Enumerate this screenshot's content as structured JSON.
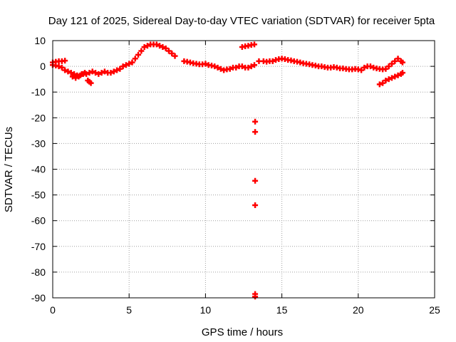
{
  "chart_data": {
    "type": "scatter",
    "title": "Day 121 of 2025, Sidereal Day-to-day VTEC variation (SDTVAR) for receiver 5pta",
    "xlabel": "GPS time / hours",
    "ylabel": "SDTVAR / TECUs",
    "xlim": [
      0,
      25
    ],
    "ylim": [
      -90,
      10
    ],
    "xticks": [
      0,
      5,
      10,
      15,
      20,
      25
    ],
    "yticks": [
      10,
      0,
      -10,
      -20,
      -30,
      -40,
      -50,
      -60,
      -70,
      -80,
      -90
    ],
    "grid": true,
    "marker": "+",
    "series_color": "#ff0000",
    "series": [
      {
        "name": "SDTVAR",
        "points": [
          [
            0.0,
            0.5
          ],
          [
            0.2,
            0.3
          ],
          [
            0.4,
            0.0
          ],
          [
            0.6,
            -0.5
          ],
          [
            0.8,
            -1.5
          ],
          [
            1.0,
            -2.0
          ],
          [
            1.2,
            -2.5
          ],
          [
            1.4,
            -3.0
          ],
          [
            1.6,
            -3.5
          ],
          [
            1.8,
            -3.5
          ],
          [
            2.0,
            -3.0
          ],
          [
            2.2,
            -3.0
          ],
          [
            2.4,
            -2.5
          ],
          [
            2.6,
            -2.0
          ],
          [
            2.8,
            -2.5
          ],
          [
            3.0,
            -3.0
          ],
          [
            3.2,
            -2.5
          ],
          [
            3.4,
            -2.0
          ],
          [
            3.6,
            -2.5
          ],
          [
            3.8,
            -2.5
          ],
          [
            4.0,
            -2.0
          ],
          [
            4.2,
            -1.5
          ],
          [
            4.4,
            -1.0
          ],
          [
            4.6,
            0.0
          ],
          [
            4.8,
            0.5
          ],
          [
            5.0,
            1.0
          ],
          [
            5.2,
            1.5
          ],
          [
            5.4,
            3.0
          ],
          [
            5.6,
            4.5
          ],
          [
            5.8,
            6.0
          ],
          [
            6.0,
            7.5
          ],
          [
            6.2,
            8.0
          ],
          [
            6.4,
            8.5
          ],
          [
            6.6,
            8.5
          ],
          [
            6.8,
            8.5
          ],
          [
            7.0,
            8.0
          ],
          [
            7.2,
            7.5
          ],
          [
            7.4,
            7.0
          ],
          [
            7.6,
            6.0
          ],
          [
            7.8,
            5.0
          ],
          [
            8.0,
            4.0
          ],
          [
            8.6,
            2.0
          ],
          [
            8.8,
            1.8
          ],
          [
            9.0,
            1.5
          ],
          [
            9.2,
            1.2
          ],
          [
            9.4,
            1.0
          ],
          [
            9.6,
            0.8
          ],
          [
            9.8,
            0.8
          ],
          [
            10.0,
            1.0
          ],
          [
            10.2,
            0.5
          ],
          [
            10.4,
            0.3
          ],
          [
            10.6,
            0.0
          ],
          [
            10.8,
            -0.5
          ],
          [
            11.0,
            -1.0
          ],
          [
            11.2,
            -1.5
          ],
          [
            11.4,
            -1.2
          ],
          [
            11.6,
            -1.0
          ],
          [
            11.8,
            -0.5
          ],
          [
            12.0,
            -0.5
          ],
          [
            12.2,
            0.0
          ],
          [
            12.4,
            0.0
          ],
          [
            12.6,
            -0.5
          ],
          [
            12.8,
            -0.5
          ],
          [
            13.0,
            0.0
          ],
          [
            13.2,
            0.5
          ],
          [
            12.4,
            7.5
          ],
          [
            12.6,
            7.8
          ],
          [
            12.8,
            8.0
          ],
          [
            13.0,
            8.3
          ],
          [
            13.2,
            8.5
          ],
          [
            13.25,
            -21.5
          ],
          [
            13.25,
            -25.5
          ],
          [
            13.25,
            -44.5
          ],
          [
            13.25,
            -54.0
          ],
          [
            13.25,
            -88.5
          ],
          [
            13.25,
            -89.5
          ],
          [
            0.0,
            1.5
          ],
          [
            0.2,
            1.8
          ],
          [
            0.4,
            2.0
          ],
          [
            0.6,
            2.0
          ],
          [
            0.8,
            2.2
          ],
          [
            1.3,
            -4.0
          ],
          [
            1.5,
            -4.5
          ],
          [
            1.7,
            -4.0
          ],
          [
            1.9,
            -3.0
          ],
          [
            2.1,
            -2.5
          ],
          [
            2.3,
            -5.5
          ],
          [
            2.4,
            -6.0
          ],
          [
            2.5,
            -6.5
          ],
          [
            13.5,
            2.0
          ],
          [
            13.8,
            2.0
          ],
          [
            14.0,
            1.8
          ],
          [
            14.2,
            2.0
          ],
          [
            14.4,
            2.0
          ],
          [
            14.6,
            2.5
          ],
          [
            14.8,
            2.8
          ],
          [
            15.0,
            3.0
          ],
          [
            15.2,
            2.8
          ],
          [
            15.4,
            2.5
          ],
          [
            15.6,
            2.3
          ],
          [
            15.8,
            2.0
          ],
          [
            16.0,
            1.8
          ],
          [
            16.2,
            1.5
          ],
          [
            16.4,
            1.2
          ],
          [
            16.6,
            1.0
          ],
          [
            16.8,
            0.8
          ],
          [
            17.0,
            0.5
          ],
          [
            17.2,
            0.3
          ],
          [
            17.4,
            0.0
          ],
          [
            17.6,
            0.0
          ],
          [
            17.8,
            -0.3
          ],
          [
            18.0,
            -0.5
          ],
          [
            18.2,
            -0.5
          ],
          [
            18.4,
            -0.3
          ],
          [
            18.6,
            -0.5
          ],
          [
            18.8,
            -0.8
          ],
          [
            19.0,
            -0.8
          ],
          [
            19.2,
            -1.0
          ],
          [
            19.4,
            -1.2
          ],
          [
            19.6,
            -1.2
          ],
          [
            19.8,
            -1.0
          ],
          [
            20.0,
            -1.2
          ],
          [
            20.2,
            -1.5
          ],
          [
            20.4,
            -0.5
          ],
          [
            20.6,
            0.0
          ],
          [
            20.8,
            0.0
          ],
          [
            21.0,
            -0.5
          ],
          [
            21.2,
            -0.8
          ],
          [
            21.4,
            -1.0
          ],
          [
            21.6,
            -1.2
          ],
          [
            21.8,
            -1.0
          ],
          [
            22.0,
            0.0
          ],
          [
            22.2,
            1.0
          ],
          [
            22.4,
            2.0
          ],
          [
            22.6,
            3.0
          ],
          [
            22.8,
            2.0
          ],
          [
            22.9,
            1.5
          ],
          [
            21.4,
            -7.0
          ],
          [
            21.6,
            -6.5
          ],
          [
            21.8,
            -5.5
          ],
          [
            22.0,
            -5.0
          ],
          [
            22.2,
            -4.5
          ],
          [
            22.4,
            -4.0
          ],
          [
            22.6,
            -3.5
          ],
          [
            22.8,
            -3.0
          ],
          [
            22.9,
            -2.5
          ]
        ]
      }
    ]
  }
}
